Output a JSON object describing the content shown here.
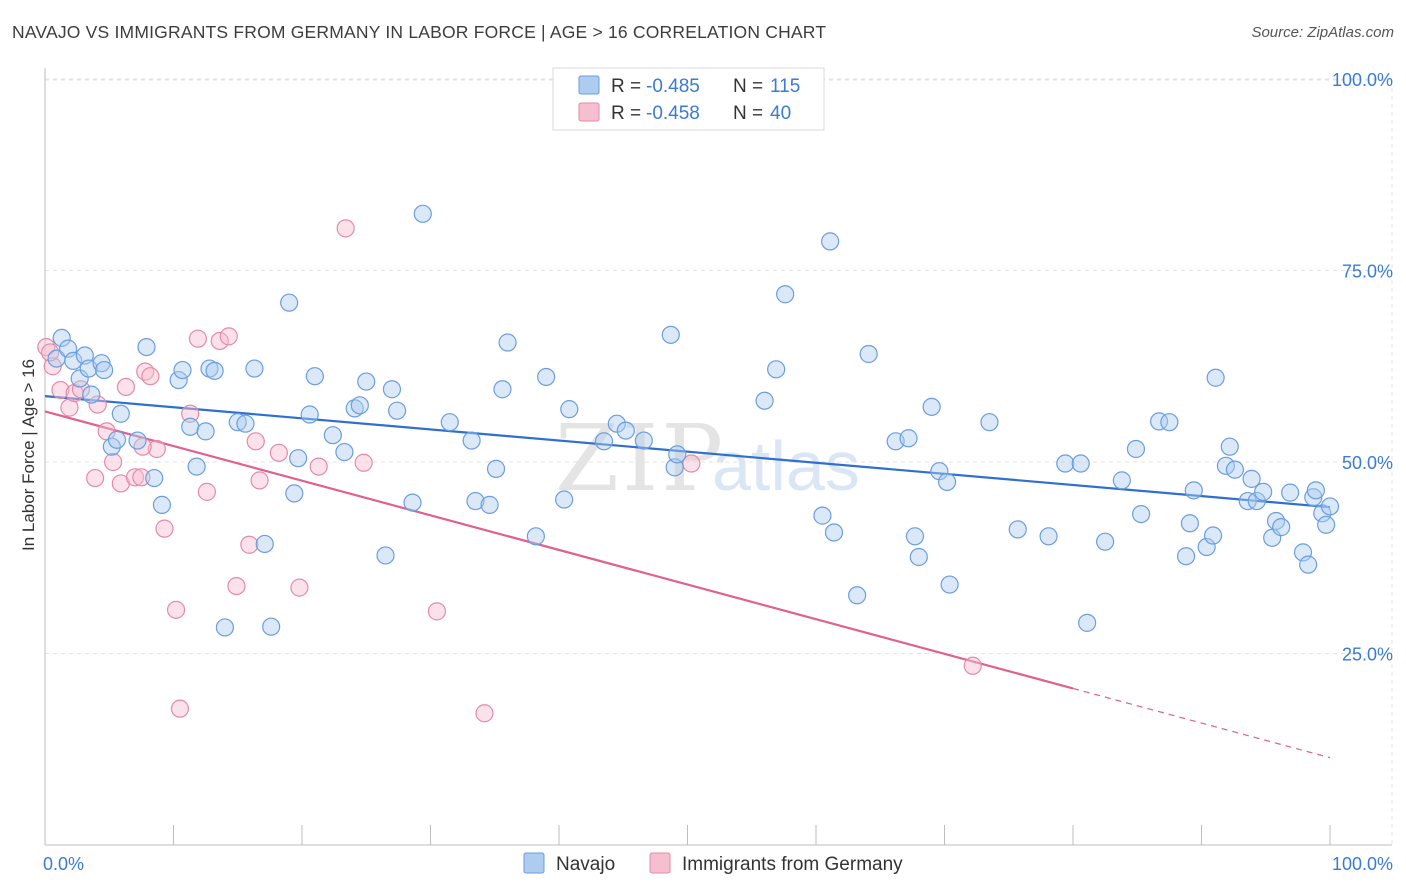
{
  "header": {
    "title": "NAVAJO VS IMMIGRANTS FROM GERMANY IN LABOR FORCE | AGE > 16 CORRELATION CHART",
    "source": "Source: ZipAtlas.com"
  },
  "watermark": {
    "zip": "ZIP",
    "atlas": "atlas"
  },
  "legend_top": {
    "rows": [
      {
        "r_label": "R =",
        "r_value": "-0.485",
        "n_label": "N =",
        "n_value": "115"
      },
      {
        "r_label": "R =",
        "r_value": "-0.458",
        "n_label": "N =",
        "n_value": "40"
      }
    ]
  },
  "legend_bottom": {
    "items": [
      "Navajo",
      "Immigrants from Germany"
    ]
  },
  "colors": {
    "navajo_fill": "#aecbf0",
    "navajo_stroke": "#6a9ee0",
    "navajo_line": "#2f6fd0",
    "germany_fill": "#f6bfd0",
    "germany_stroke": "#e58aa8",
    "germany_line": "#e0608f",
    "tick_text": "#3a7bd5",
    "grid": "#e3e3e3"
  },
  "chart_data": {
    "type": "scatter",
    "title": "NAVAJO VS IMMIGRANTS FROM GERMANY IN LABOR FORCE | AGE > 16 CORRELATION CHART",
    "xlabel": "",
    "ylabel": "In Labor Force | Age > 16",
    "xlim": [
      0,
      100
    ],
    "ylim": [
      0,
      100
    ],
    "x_tick_labels": [
      "0.0%",
      "100.0%"
    ],
    "y_ticks": [
      25,
      50,
      75,
      100
    ],
    "y_tick_labels": [
      "25.0%",
      "50.0%",
      "75.0%",
      "100.0%"
    ],
    "grid": true,
    "legend_position": "bottom",
    "series": [
      {
        "name": "Navajo",
        "r": -0.485,
        "n": 115,
        "trend": {
          "x": [
            0,
            100
          ],
          "y": [
            58.6,
            44.1
          ],
          "dashed_from": null
        },
        "points": [
          [
            0.9,
            63.5
          ],
          [
            1.3,
            66.2
          ],
          [
            1.8,
            64.8
          ],
          [
            2.2,
            63.2
          ],
          [
            2.7,
            60.9
          ],
          [
            3.1,
            63.9
          ],
          [
            3.4,
            62.2
          ],
          [
            3.6,
            58.8
          ],
          [
            4.4,
            62.9
          ],
          [
            4.6,
            62
          ],
          [
            5.2,
            52
          ],
          [
            5.6,
            52.9
          ],
          [
            5.9,
            56.3
          ],
          [
            7.2,
            52.8
          ],
          [
            7.9,
            65
          ],
          [
            8.5,
            47.9
          ],
          [
            9.1,
            44.4
          ],
          [
            10.4,
            60.7
          ],
          [
            10.7,
            62
          ],
          [
            11.3,
            54.6
          ],
          [
            11.8,
            49.4
          ],
          [
            12.5,
            54
          ],
          [
            12.8,
            62.2
          ],
          [
            13.2,
            61.9
          ],
          [
            14,
            28.4
          ],
          [
            15,
            55.2
          ],
          [
            15.6,
            55
          ],
          [
            16.3,
            62.2
          ],
          [
            17.1,
            39.3
          ],
          [
            17.6,
            28.5
          ],
          [
            19,
            70.8
          ],
          [
            19.4,
            45.9
          ],
          [
            19.7,
            50.5
          ],
          [
            20.6,
            56.2
          ],
          [
            21,
            61.2
          ],
          [
            22.4,
            53.5
          ],
          [
            23.3,
            51.3
          ],
          [
            24.1,
            57
          ],
          [
            24.5,
            57.4
          ],
          [
            25,
            60.5
          ],
          [
            26.5,
            37.8
          ],
          [
            27,
            59.5
          ],
          [
            27.4,
            56.7
          ],
          [
            28.6,
            44.7
          ],
          [
            29.4,
            82.4
          ],
          [
            31.5,
            55.2
          ],
          [
            33.2,
            52.8
          ],
          [
            33.5,
            44.9
          ],
          [
            34.6,
            44.4
          ],
          [
            35.1,
            49.1
          ],
          [
            35.6,
            59.5
          ],
          [
            36,
            65.6
          ],
          [
            38.2,
            40.3
          ],
          [
            39,
            61.1
          ],
          [
            40.4,
            45.1
          ],
          [
            40.8,
            56.9
          ],
          [
            43.5,
            52.7
          ],
          [
            44.5,
            55
          ],
          [
            45.2,
            54.1
          ],
          [
            46.6,
            52.8
          ],
          [
            48.7,
            66.6
          ],
          [
            49,
            49.3
          ],
          [
            49.2,
            51
          ],
          [
            56.9,
            62.1
          ],
          [
            57.6,
            71.9
          ],
          [
            61.1,
            78.8
          ],
          [
            61.4,
            40.8
          ],
          [
            63.2,
            32.6
          ],
          [
            64.1,
            64.1
          ],
          [
            66.2,
            52.7
          ],
          [
            67.7,
            40.3
          ],
          [
            68,
            37.6
          ],
          [
            69,
            57.2
          ],
          [
            69.6,
            48.8
          ],
          [
            70.2,
            47.4
          ],
          [
            70.4,
            34
          ],
          [
            73.5,
            55.2
          ],
          [
            75.7,
            41.2
          ],
          [
            78.1,
            40.3
          ],
          [
            79.4,
            49.8
          ],
          [
            80.6,
            49.8
          ],
          [
            81.1,
            29
          ],
          [
            82.5,
            39.6
          ],
          [
            83.8,
            47.6
          ],
          [
            84.9,
            51.7
          ],
          [
            85.3,
            43.2
          ],
          [
            86.7,
            55.3
          ],
          [
            87.5,
            55.2
          ],
          [
            88.8,
            37.7
          ],
          [
            89.1,
            42
          ],
          [
            89.4,
            46.3
          ],
          [
            90.4,
            38.9
          ],
          [
            90.9,
            40.4
          ],
          [
            91.1,
            61
          ],
          [
            91.9,
            49.5
          ],
          [
            92.2,
            52
          ],
          [
            92.6,
            49
          ],
          [
            93.6,
            44.9
          ],
          [
            93.9,
            47.8
          ],
          [
            94.3,
            44.9
          ],
          [
            94.8,
            46.1
          ],
          [
            95.5,
            40.1
          ],
          [
            95.8,
            42.3
          ],
          [
            96.2,
            41.5
          ],
          [
            96.9,
            46
          ],
          [
            97.9,
            38.2
          ],
          [
            98.3,
            36.6
          ],
          [
            98.7,
            45.4
          ],
          [
            98.9,
            46.3
          ],
          [
            99.4,
            43.3
          ],
          [
            99.7,
            41.8
          ],
          [
            100,
            44.2
          ],
          [
            67.2,
            53.1
          ],
          [
            56,
            58
          ],
          [
            60.5,
            43
          ]
        ]
      },
      {
        "name": "Immigrants from Germany",
        "r": -0.458,
        "n": 40,
        "trend": {
          "x": [
            0,
            100
          ],
          "y": [
            56.6,
            11.4
          ],
          "dashed_from": 80
        },
        "points": [
          [
            0.1,
            65
          ],
          [
            0.6,
            62.5
          ],
          [
            1.2,
            59.4
          ],
          [
            1.9,
            57.1
          ],
          [
            2.3,
            59
          ],
          [
            2.8,
            59.5
          ],
          [
            3.9,
            47.9
          ],
          [
            4.1,
            57.5
          ],
          [
            4.8,
            54
          ],
          [
            5.3,
            50
          ],
          [
            5.9,
            47.2
          ],
          [
            6.3,
            59.8
          ],
          [
            7,
            48
          ],
          [
            7.5,
            48
          ],
          [
            7.8,
            61.8
          ],
          [
            8.2,
            61.2
          ],
          [
            8.7,
            51.7
          ],
          [
            9.3,
            41.3
          ],
          [
            10.2,
            30.7
          ],
          [
            10.5,
            17.8
          ],
          [
            11.3,
            56.3
          ],
          [
            11.9,
            66.1
          ],
          [
            12.6,
            46.1
          ],
          [
            13.6,
            65.8
          ],
          [
            14.3,
            66.4
          ],
          [
            14.9,
            33.8
          ],
          [
            15.9,
            39.2
          ],
          [
            16.4,
            52.7
          ],
          [
            16.7,
            47.6
          ],
          [
            18.2,
            51.2
          ],
          [
            19.8,
            33.6
          ],
          [
            21.3,
            49.4
          ],
          [
            23.4,
            80.5
          ],
          [
            24.8,
            49.9
          ],
          [
            30.5,
            30.5
          ],
          [
            34.2,
            17.2
          ],
          [
            50.3,
            49.8
          ],
          [
            72.2,
            23.4
          ],
          [
            0.4,
            64.3
          ],
          [
            7.6,
            52
          ]
        ]
      }
    ]
  }
}
